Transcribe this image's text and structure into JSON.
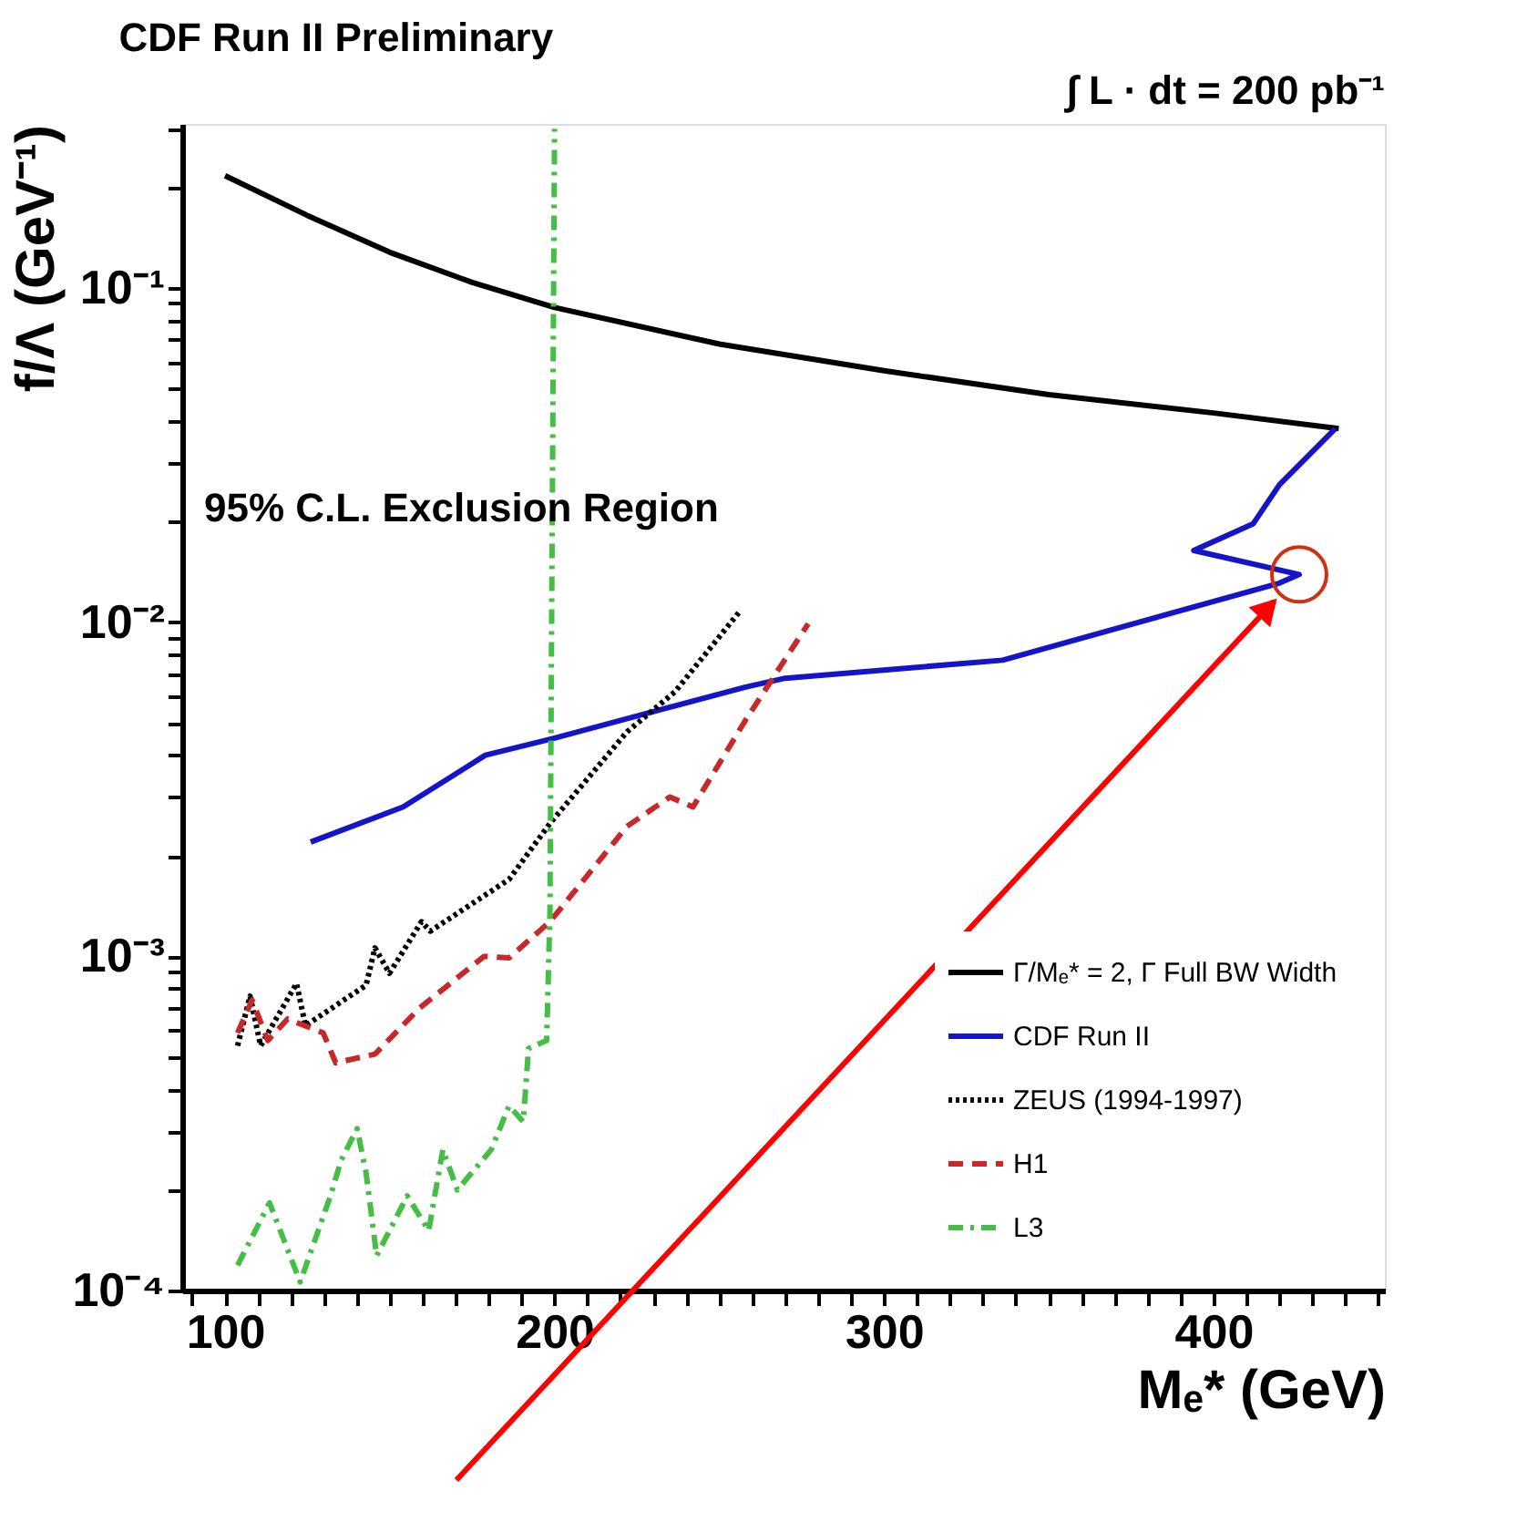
{
  "chart_data": {
    "type": "line",
    "title": "CDF Run II Preliminary",
    "xlabel": "Mₑ* (GeV)",
    "ylabel": "f/Λ (GeV⁻¹)",
    "annotations": [
      "∫ L · dt = 200 pb⁻¹",
      "95% C.L.  Exclusion Region"
    ],
    "log": "y",
    "grid": false,
    "legend": "bottom right",
    "marker": "none",
    "xlim": [
      87,
      452
    ],
    "ylim": [
      0.0001,
      0.31
    ],
    "xticks": [
      {
        "value": 90,
        "label": null
      },
      100,
      {
        "value": 110,
        "label": null
      },
      {
        "value": 120,
        "label": null
      },
      {
        "value": 130,
        "label": null
      },
      {
        "value": 140,
        "label": null
      },
      {
        "value": 150,
        "label": null
      },
      {
        "value": 160,
        "label": null
      },
      {
        "value": 170,
        "label": null
      },
      {
        "value": 180,
        "label": null
      },
      {
        "value": 190,
        "label": null
      },
      200,
      {
        "value": 210,
        "label": null
      },
      {
        "value": 220,
        "label": null
      },
      {
        "value": 230,
        "label": null
      },
      {
        "value": 240,
        "label": null
      },
      {
        "value": 250,
        "label": null
      },
      {
        "value": 260,
        "label": null
      },
      {
        "value": 270,
        "label": null
      },
      {
        "value": 280,
        "label": null
      },
      {
        "value": 290,
        "label": null
      },
      300,
      {
        "value": 310,
        "label": null
      },
      {
        "value": 320,
        "label": null
      },
      {
        "value": 330,
        "label": null
      },
      {
        "value": 340,
        "label": null
      },
      {
        "value": 350,
        "label": null
      },
      {
        "value": 360,
        "label": null
      },
      {
        "value": 370,
        "label": null
      },
      {
        "value": 380,
        "label": null
      },
      {
        "value": 390,
        "label": null
      },
      400,
      {
        "value": 410,
        "label": null
      },
      {
        "value": 420,
        "label": null
      },
      {
        "value": 430,
        "label": null
      },
      {
        "value": 440,
        "label": null
      },
      {
        "value": 450,
        "label": null
      }
    ],
    "yticks": [
      {
        "value": 0.0001,
        "label": "10⁻⁴"
      },
      {
        "value": 0.0002,
        "label": null
      },
      {
        "value": 0.0003,
        "label": null
      },
      {
        "value": 0.0004,
        "label": null
      },
      {
        "value": 0.0005,
        "label": null
      },
      {
        "value": 0.0006,
        "label": null
      },
      {
        "value": 0.0007,
        "label": null
      },
      {
        "value": 0.0008,
        "label": null
      },
      {
        "value": 0.0009,
        "label": null
      },
      {
        "value": 0.001,
        "label": "10⁻³"
      },
      {
        "value": 0.002,
        "label": null
      },
      {
        "value": 0.003,
        "label": null
      },
      {
        "value": 0.004,
        "label": null
      },
      {
        "value": 0.005,
        "label": null
      },
      {
        "value": 0.006,
        "label": null
      },
      {
        "value": 0.007,
        "label": null
      },
      {
        "value": 0.008,
        "label": null
      },
      {
        "value": 0.009,
        "label": null
      },
      {
        "value": 0.01,
        "label": "10⁻²"
      },
      {
        "value": 0.02,
        "label": null
      },
      {
        "value": 0.03,
        "label": null
      },
      {
        "value": 0.04,
        "label": null
      },
      {
        "value": 0.05,
        "label": null
      },
      {
        "value": 0.06,
        "label": null
      },
      {
        "value": 0.07,
        "label": null
      },
      {
        "value": 0.08,
        "label": null
      },
      {
        "value": 0.09,
        "label": null
      },
      {
        "value": 0.1,
        "label": "10⁻¹"
      },
      {
        "value": 0.2,
        "label": null
      },
      {
        "value": 0.3,
        "label": null
      }
    ],
    "series": [
      {
        "name": "Γ/Mₑ* = 2, Γ Full BW Width",
        "color": "#000000",
        "line_style": "solid",
        "x": [
          100,
          125,
          150,
          175,
          200,
          250,
          300,
          350,
          400,
          438
        ],
        "values": [
          0.217,
          0.165,
          0.128,
          0.104,
          0.0875,
          0.068,
          0.0566,
          0.048,
          0.0423,
          0.038
        ]
      },
      {
        "name": "CDF Run II",
        "color": "#1414c8",
        "line_style": "solid",
        "x": [
          126,
          154,
          179,
          200,
          233,
          258,
          270,
          336,
          420,
          426,
          394,
          412,
          420,
          437
        ],
        "values": [
          0.0022,
          0.0028,
          0.004,
          0.0045,
          0.0055,
          0.0064,
          0.0068,
          0.0077,
          0.0131,
          0.0139,
          0.0164,
          0.0197,
          0.0258,
          0.038
        ]
      },
      {
        "name": "ZEUS (1994-1997)",
        "color": "#000000",
        "line_style": "dotted",
        "x": [
          103.8,
          107.6,
          110.8,
          121.7,
          124.4,
          142.8,
          145.5,
          149.9,
          159.6,
          162.3,
          186.2,
          198.6,
          222,
          236.6,
          256.6
        ],
        "values": [
          0.00054,
          0.00076,
          0.00054,
          0.00083,
          0.00062,
          0.00082,
          0.00106,
          0.00089,
          0.00127,
          0.00119,
          0.0017,
          0.0025,
          0.0047,
          0.0062,
          0.0109
        ]
      },
      {
        "name": "H1",
        "color": "#c82828",
        "line_style": "dashed",
        "x": [
          103.8,
          108.2,
          113,
          119,
          129.8,
          133.6,
          145.5,
          159,
          178.6,
          186.2,
          198.6,
          222,
          235,
          242,
          258,
          277
        ],
        "values": [
          0.00059,
          0.00074,
          0.00056,
          0.00065,
          0.00059,
          0.00048,
          0.00051,
          0.0007,
          0.001,
          0.00099,
          0.00127,
          0.00245,
          0.003,
          0.0028,
          0.0051,
          0.0099
        ]
      },
      {
        "name": "L3",
        "color": "#46be46",
        "line_style": "dashdot",
        "x": [
          103.8,
          113.5,
          122.8,
          132,
          135.2,
          140.1,
          142.8,
          146,
          155.3,
          161.8,
          166.1,
          170.5,
          180.8,
          186.2,
          190.5,
          192.1,
          197.6,
          198.6,
          200
        ],
        "values": [
          0.000119,
          0.000183,
          0.000106,
          0.000192,
          0.000245,
          0.000305,
          0.000225,
          0.000127,
          0.000192,
          0.000151,
          0.000264,
          0.0002,
          0.000264,
          0.000357,
          0.00032,
          0.00053,
          0.00056,
          0.00134,
          0.3
        ]
      }
    ]
  }
}
